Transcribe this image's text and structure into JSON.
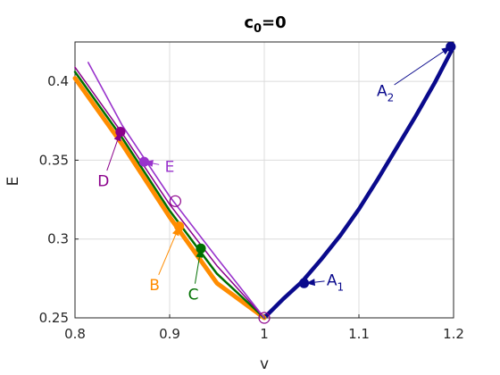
{
  "chart_data": {
    "type": "line",
    "title": {
      "main": "c",
      "sub": "0",
      "rest": "=0"
    },
    "xlabel": "v",
    "ylabel": "E",
    "xlim": [
      0.8,
      1.2
    ],
    "ylim": [
      0.25,
      0.425
    ],
    "xticks": [
      0.8,
      0.9,
      1.0,
      1.1,
      1.2
    ],
    "xtick_labels": [
      "0.8",
      "0.9",
      "1",
      "1.1",
      "1.2"
    ],
    "yticks": [
      0.25,
      0.3,
      0.35,
      0.4
    ],
    "ytick_labels": [
      "0.25",
      "0.3",
      "0.35",
      "0.4"
    ],
    "grid": true,
    "colors": {
      "A": "#0a0a8c",
      "B": "#ff8c00",
      "C": "#007000",
      "D": "#8b008b",
      "E": "#9933cc"
    },
    "series": [
      {
        "key": "A",
        "color": "#0a0a8c",
        "width": 4.5,
        "x": [
          1.0,
          1.02,
          1.04,
          1.06,
          1.08,
          1.1,
          1.12,
          1.14,
          1.16,
          1.18,
          1.2
        ],
        "y": [
          0.25,
          0.262,
          0.273,
          0.287,
          0.302,
          0.319,
          0.338,
          0.358,
          0.378,
          0.399,
          0.422
        ]
      },
      {
        "key": "B",
        "color": "#ff8c00",
        "width": 5,
        "x": [
          0.8,
          0.85,
          0.9,
          0.95,
          1.0
        ],
        "y": [
          0.402,
          0.36,
          0.314,
          0.272,
          0.25
        ]
      },
      {
        "key": "C",
        "color": "#007000",
        "width": 2.5,
        "x": [
          0.8,
          0.85,
          0.9,
          0.95,
          1.0
        ],
        "y": [
          0.406,
          0.364,
          0.318,
          0.278,
          0.25
        ]
      },
      {
        "key": "D",
        "color": "#8b008b",
        "width": 1.5,
        "x": [
          0.8,
          0.85,
          0.9,
          0.95,
          1.0
        ],
        "y": [
          0.409,
          0.367,
          0.322,
          0.283,
          0.25
        ]
      },
      {
        "key": "E",
        "color": "#9933cc",
        "width": 1.6,
        "x": [
          0.814,
          0.85,
          0.9,
          0.95,
          1.0
        ],
        "y": [
          0.412,
          0.372,
          0.327,
          0.288,
          0.25
        ]
      }
    ],
    "markers": [
      {
        "key": "A1",
        "x": 1.042,
        "y": 0.272,
        "color": "#0a0a8c",
        "filled": true
      },
      {
        "key": "A2",
        "x": 1.197,
        "y": 0.422,
        "color": "#0a0a8c",
        "filled": true
      },
      {
        "key": "B",
        "x": 0.91,
        "y": 0.308,
        "color": "#ff8c00",
        "filled": true
      },
      {
        "key": "C",
        "x": 0.933,
        "y": 0.294,
        "color": "#007000",
        "filled": true
      },
      {
        "key": "D",
        "x": 0.848,
        "y": 0.368,
        "color": "#8b008b",
        "filled": true
      },
      {
        "key": "E",
        "x": 0.873,
        "y": 0.349,
        "color": "#9933cc",
        "filled": true
      },
      {
        "key": "open-1",
        "x": 0.906,
        "y": 0.324,
        "color": "#8b008b",
        "filled": false
      },
      {
        "key": "open-2",
        "x": 1.0,
        "y": 0.25,
        "color": "#8b008b",
        "filled": false
      }
    ],
    "annotations": [
      {
        "text": "A",
        "sub": "1",
        "color": "#0a0a8c",
        "tx": 1.075,
        "ty": 0.274,
        "px": 1.044,
        "py": 0.272
      },
      {
        "text": "A",
        "sub": "2",
        "color": "#0a0a8c",
        "tx": 1.128,
        "ty": 0.394,
        "px": 1.197,
        "py": 0.422
      },
      {
        "text": "B",
        "sub": "",
        "color": "#ff8c00",
        "tx": 0.884,
        "ty": 0.271,
        "px": 0.91,
        "py": 0.308
      },
      {
        "text": "C",
        "sub": "",
        "color": "#007000",
        "tx": 0.925,
        "ty": 0.265,
        "px": 0.933,
        "py": 0.294
      },
      {
        "text": "D",
        "sub": "",
        "color": "#8b008b",
        "tx": 0.83,
        "ty": 0.337,
        "px": 0.848,
        "py": 0.368
      },
      {
        "text": "E",
        "sub": "",
        "color": "#9933cc",
        "tx": 0.9,
        "ty": 0.346,
        "px": 0.873,
        "py": 0.349
      }
    ]
  }
}
